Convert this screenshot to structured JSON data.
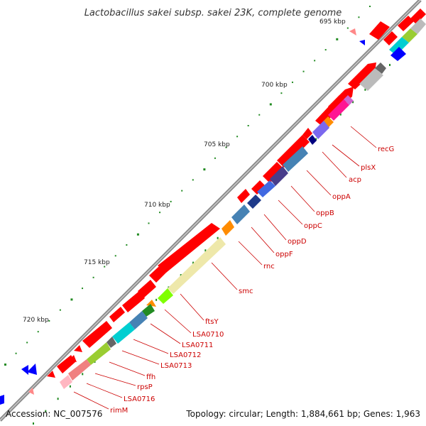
{
  "title": "Lactobacillus sakei subsp. sakei 23K, complete genome",
  "footer": {
    "accession": "Accession: NC_007576",
    "topology": "Topology: circular; Length: 1,884,661 bp; Genes: 1,963"
  },
  "ruler": {
    "labels": [
      "695 kbp",
      "700 kbp",
      "705 kbp",
      "710 kbp",
      "715 kbp",
      "720 kbp"
    ]
  },
  "genes": [
    "recG",
    "plsX",
    "acp",
    "oppA",
    "oppB",
    "oppC",
    "oppD",
    "oppF",
    "rnc",
    "smc",
    "ftsY",
    "LSA0710",
    "LSA0711",
    "LSA0712",
    "LSA0713",
    "ffh",
    "rpsP",
    "LSA0716",
    "rimM"
  ],
  "colors": {
    "backbone": "#8a8a8a",
    "gene_arrow": "#ff0000",
    "label": "#cc0000",
    "tick": "#228b22"
  }
}
